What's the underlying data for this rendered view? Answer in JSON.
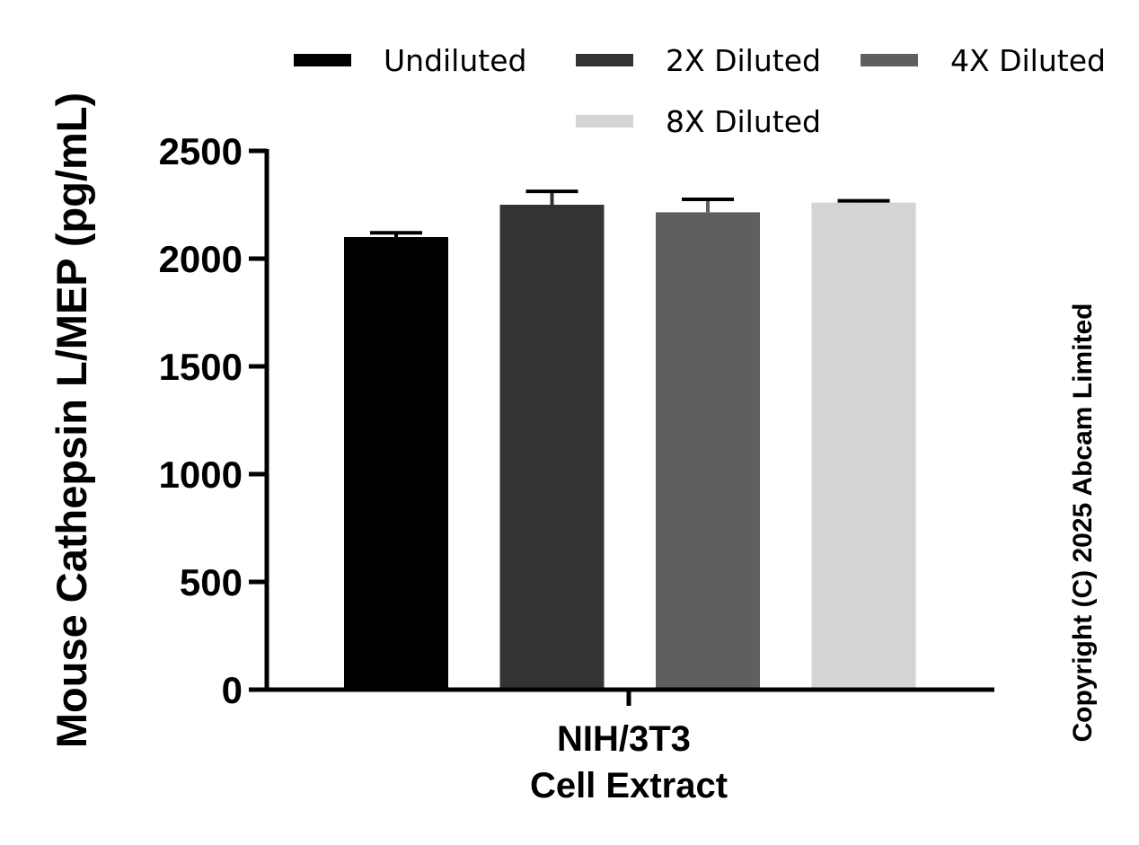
{
  "copyright": "Copyright (C) 2025 Abcam Limited",
  "chart_data": {
    "type": "bar",
    "title": "",
    "ylabel": "Mouse Cathepsin L/MEP (pg/mL)",
    "xlabel": "",
    "categories": [
      "NIH/3T3",
      "Cell Extract"
    ],
    "category_lines": [
      "NIH/3T3",
      "Cell Extract"
    ],
    "ylim": [
      0,
      2500
    ],
    "yticks": [
      "0",
      "500",
      "1000",
      "1500",
      "2000",
      "2500"
    ],
    "legend_position": "top",
    "series": [
      {
        "name": "Undiluted",
        "value": 2100,
        "error": 20,
        "color": "#000000"
      },
      {
        "name": "2X Diluted",
        "value": 2250,
        "error": 62,
        "color": "#333333"
      },
      {
        "name": "4X Diluted",
        "value": 2215,
        "error": 60,
        "color": "#5f5f5f"
      },
      {
        "name": "8X Diluted",
        "value": 2260,
        "error": 8,
        "color": "#d4d4d4"
      }
    ]
  }
}
